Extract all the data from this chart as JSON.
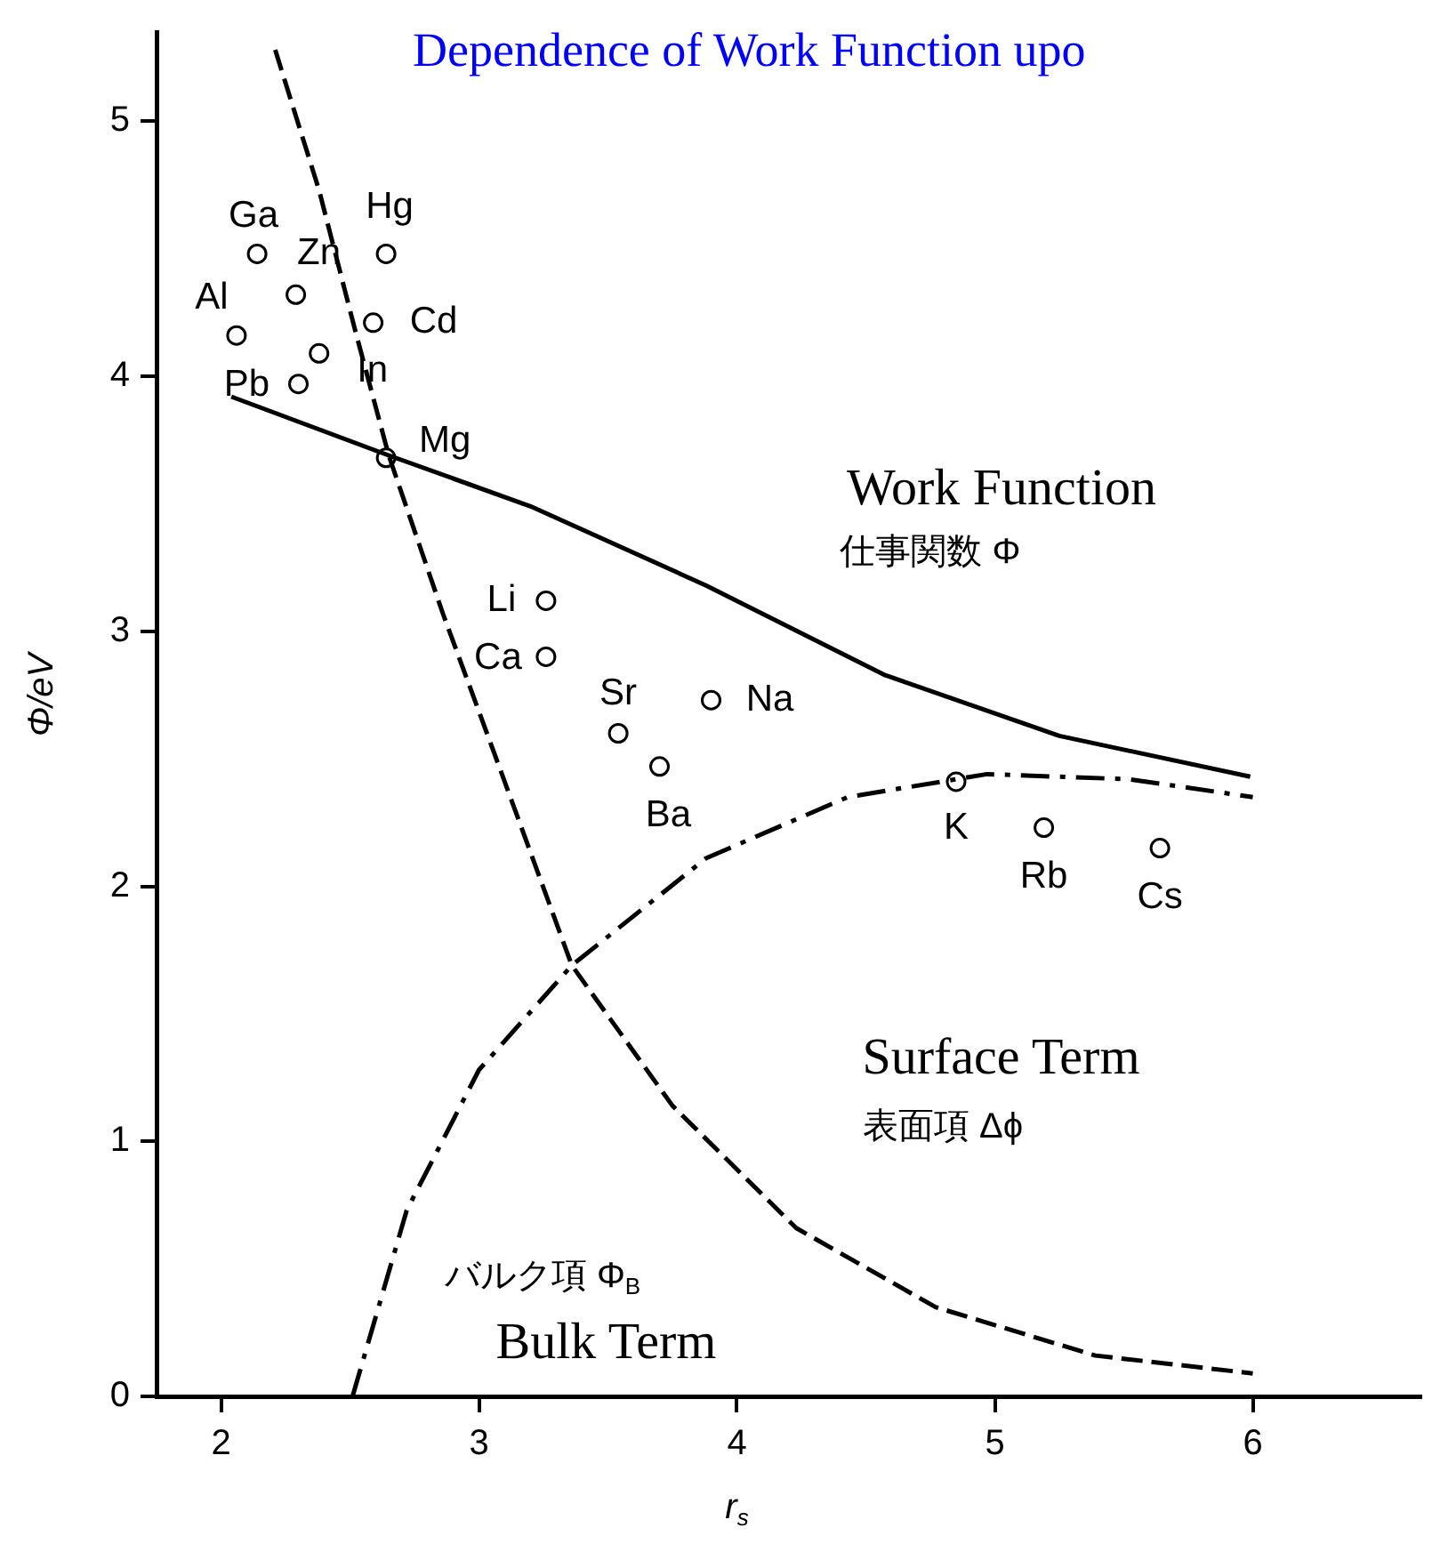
{
  "chart_data": {
    "type": "line",
    "title": "Dependence of Work Function upo",
    "xlabel": "r$_{s}$",
    "ylabel": "Φ/eV",
    "xlim": [
      1.75,
      6.65
    ],
    "ylim": [
      0,
      5.35
    ],
    "xticks": [
      2,
      3,
      4,
      5,
      6
    ],
    "yticks": [
      0,
      1,
      2,
      3,
      4,
      5
    ],
    "series": [
      {
        "color": "#000000",
        "line_style": "solid",
        "marker": "none",
        "x": [
          2.04,
          2.65,
          3.2,
          3.88,
          4.57,
          5.25,
          5.99
        ],
        "values": [
          3.92,
          3.69,
          3.49,
          3.18,
          2.83,
          2.59,
          2.43
        ]
      },
      {
        "color": "#000000",
        "line_style": "dashed",
        "marker": "none",
        "x": [
          2.21,
          2.38,
          2.52,
          2.65,
          2.86,
          3.06,
          3.36,
          3.75,
          4.23,
          4.77,
          5.39,
          6.0
        ],
        "values": [
          5.28,
          4.73,
          4.18,
          3.69,
          3.07,
          2.52,
          1.69,
          1.14,
          0.66,
          0.35,
          0.16,
          0.09
        ]
      },
      {
        "color": "#000000",
        "line_style": "dashdot",
        "marker": "none",
        "x": [
          2.51,
          2.72,
          3.0,
          3.36,
          3.88,
          4.43,
          4.97,
          5.52,
          6.0
        ],
        "values": [
          0,
          0.73,
          1.28,
          1.69,
          2.11,
          2.35,
          2.44,
          2.42,
          2.35
        ]
      },
      {
        "type": "scatter",
        "color": "#000000",
        "marker": "circle",
        "x": [
          2.06,
          2.14,
          2.29,
          2.64,
          2.59,
          2.38,
          2.3,
          2.64,
          3.26,
          3.26,
          3.54,
          3.9,
          3.7,
          4.85,
          5.19,
          5.64
        ],
        "values": [
          4.16,
          4.48,
          4.32,
          4.48,
          4.21,
          4.09,
          3.97,
          3.68,
          3.12,
          2.9,
          2.6,
          2.73,
          2.47,
          2.41,
          2.23,
          2.15
        ]
      }
    ],
    "annotations": [
      {
        "text": "Al",
        "x": 2.06,
        "y": 4.16
      },
      {
        "text": "Ga",
        "x": 2.14,
        "y": 4.48
      },
      {
        "text": "Zn",
        "x": 2.29,
        "y": 4.32
      },
      {
        "text": "Hg",
        "x": 2.64,
        "y": 4.48
      },
      {
        "text": "Cd",
        "x": 2.59,
        "y": 4.21
      },
      {
        "text": "In",
        "x": 2.38,
        "y": 4.09
      },
      {
        "text": "Pb",
        "x": 2.3,
        "y": 3.97
      },
      {
        "text": "Mg",
        "x": 2.64,
        "y": 3.68
      },
      {
        "text": "Li",
        "x": 3.26,
        "y": 3.12
      },
      {
        "text": "Ca",
        "x": 3.26,
        "y": 2.9
      },
      {
        "text": "Sr",
        "x": 3.54,
        "y": 2.6
      },
      {
        "text": "Na",
        "x": 3.9,
        "y": 2.73
      },
      {
        "text": "Ba",
        "x": 3.7,
        "y": 2.47
      },
      {
        "text": "K",
        "x": 4.85,
        "y": 2.41
      },
      {
        "text": "Rb",
        "x": 5.19,
        "y": 2.23
      },
      {
        "text": "Cs",
        "x": 5.64,
        "y": 2.15
      },
      "Work Function",
      "仕事関数 Φ",
      "Surface Term",
      "表面項 Δϕ",
      "バルク項 Φ$_{B}$",
      "Bulk Term"
    ]
  }
}
